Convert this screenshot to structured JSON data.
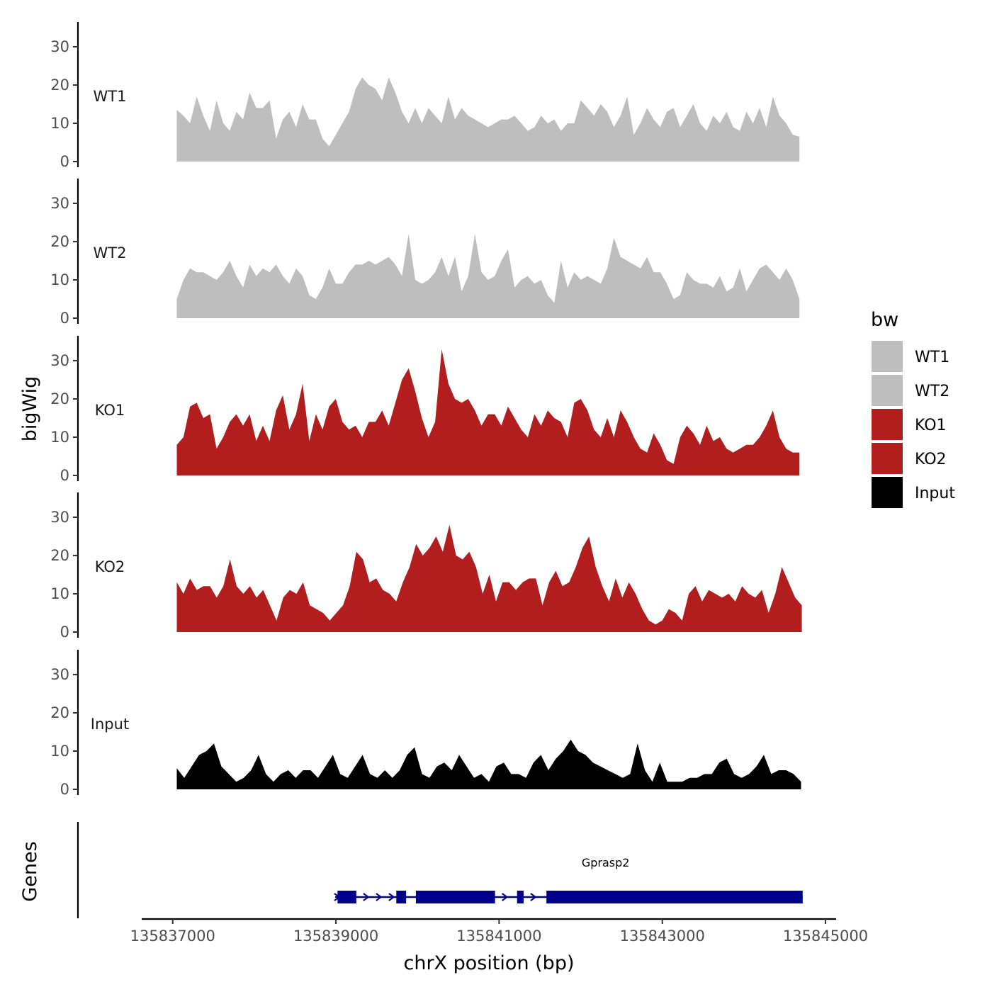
{
  "chart_data": {
    "type": "area",
    "x_axis": {
      "label": "chrX position (bp)",
      "lim": [
        135836620,
        135845130
      ],
      "ticks": [
        135837000,
        135839000,
        135841000,
        135843000,
        135845000
      ],
      "tick_labels": [
        "135837000",
        "135839000",
        "135841000",
        "135843000",
        "135845000"
      ]
    },
    "y_axis": {
      "label": "bigWig",
      "lim": [
        0,
        35
      ],
      "ticks": [
        0,
        10,
        20,
        30
      ],
      "tick_labels": [
        "0",
        "10",
        "20",
        "30"
      ]
    },
    "genes_axis_label": "Genes",
    "legend": {
      "title": "bw",
      "entries": [
        {
          "name": "WT1",
          "color": "#bebebe"
        },
        {
          "name": "WT2",
          "color": "#bebebe"
        },
        {
          "name": "KO1",
          "color": "#b21e1e"
        },
        {
          "name": "KO2",
          "color": "#b21e1e"
        },
        {
          "name": "Input",
          "color": "#000000"
        }
      ]
    },
    "series": [
      {
        "name": "WT1",
        "color": "#bebebe",
        "x_start": 135837050,
        "x_end": 135844680,
        "values": [
          13.5,
          12,
          10,
          17,
          12,
          8,
          16,
          10,
          8,
          13,
          11,
          18,
          14,
          14,
          16,
          6,
          11,
          13,
          9,
          15,
          11,
          11,
          6,
          4,
          7,
          10,
          13,
          19,
          22,
          20,
          19,
          16,
          22,
          18,
          13,
          10,
          14,
          10,
          14,
          12,
          10,
          17,
          11,
          14,
          12,
          11,
          10,
          9,
          10,
          11,
          11,
          12,
          10,
          8,
          9,
          12,
          10,
          11,
          8,
          10,
          10,
          16,
          14,
          12,
          15,
          13,
          9,
          12,
          17,
          7,
          10,
          14,
          11,
          9,
          13,
          14,
          9,
          12,
          15,
          10,
          8,
          12,
          10,
          13,
          9,
          8,
          13,
          10,
          14,
          9,
          17,
          12,
          10,
          7,
          6.5
        ]
      },
      {
        "name": "WT2",
        "color": "#bebebe",
        "x_start": 135837050,
        "x_end": 135844680,
        "values": [
          5,
          10,
          13,
          12,
          12,
          11,
          10,
          12,
          15,
          11,
          8,
          14,
          11,
          13,
          12,
          14,
          11,
          9,
          13,
          11,
          6,
          5,
          8,
          13,
          9,
          9,
          12,
          14,
          14,
          15,
          14,
          15,
          16,
          14,
          11,
          22,
          10,
          9,
          10,
          12,
          16,
          11,
          16,
          7,
          11,
          22,
          12,
          10,
          11,
          15,
          18,
          8,
          10,
          11,
          9,
          10,
          6,
          4,
          15,
          8,
          12,
          10,
          11,
          10,
          9,
          13,
          21,
          16,
          15,
          14,
          13,
          16,
          12,
          12,
          9,
          5,
          6,
          12,
          10,
          9,
          9,
          8,
          11,
          7,
          8,
          13,
          7,
          10,
          13,
          14,
          12,
          10,
          13,
          10,
          5
        ]
      },
      {
        "name": "KO1",
        "color": "#b21e1e",
        "x_start": 135837050,
        "x_end": 135844680,
        "values": [
          8,
          10,
          18,
          19,
          15,
          16,
          7,
          10,
          14,
          16,
          13,
          16,
          9,
          13,
          9,
          17,
          21,
          12,
          16,
          24,
          9,
          16,
          12,
          18,
          20,
          14,
          12,
          13,
          10,
          14,
          14,
          17,
          13,
          19,
          25,
          28,
          22,
          15,
          10,
          14,
          33,
          24,
          20,
          19,
          20,
          17,
          13,
          16,
          16,
          13,
          18,
          15,
          12,
          10,
          16,
          13,
          17,
          15,
          14,
          10,
          19,
          20,
          17,
          12,
          10,
          15,
          10,
          17,
          14,
          10,
          7,
          6,
          11,
          8,
          4,
          3,
          10,
          13,
          11,
          8,
          13,
          9,
          10,
          7,
          6,
          7,
          8,
          8,
          10,
          13,
          17,
          10,
          7,
          6,
          6
        ]
      },
      {
        "name": "KO2",
        "color": "#b21e1e",
        "x_start": 135837050,
        "x_end": 135844710,
        "values": [
          13,
          10,
          14,
          11,
          12,
          12,
          9,
          12,
          19,
          12,
          10,
          12,
          9,
          11,
          7,
          3,
          9,
          11,
          10,
          13,
          7,
          6,
          5,
          3,
          5,
          7,
          12,
          21,
          19,
          13,
          14,
          11,
          10,
          8,
          13,
          17,
          23,
          20,
          22,
          25,
          21,
          28,
          20,
          19,
          21,
          17,
          10,
          15,
          8,
          13,
          13,
          11,
          13,
          14,
          14,
          7,
          13,
          16,
          12,
          13,
          17,
          22,
          25,
          17,
          12,
          8,
          14,
          9,
          13,
          10,
          6,
          3,
          2,
          3,
          6,
          5,
          3,
          10,
          12,
          8,
          11,
          10,
          9,
          10,
          8,
          12,
          10,
          9,
          11,
          5,
          10,
          17,
          13,
          9,
          7
        ]
      },
      {
        "name": "Input",
        "color": "#000000",
        "x_start": 135837050,
        "x_end": 135844700,
        "values": [
          5.5,
          3,
          6,
          9,
          10,
          12,
          6,
          4,
          2,
          3,
          5,
          9,
          4,
          2,
          4,
          5,
          3,
          5,
          5,
          3,
          6,
          9,
          4,
          3,
          6,
          9,
          4,
          3,
          5,
          3,
          5,
          9,
          11,
          4,
          3,
          6,
          7,
          5,
          9,
          6,
          3,
          4,
          2,
          6,
          7,
          4,
          4,
          3,
          7,
          9,
          5,
          8,
          10,
          13,
          10,
          9,
          7,
          6,
          5,
          4,
          3,
          4,
          12,
          5,
          2,
          7,
          2,
          2,
          2,
          3,
          3,
          4,
          4,
          7,
          8,
          4,
          3,
          4,
          6,
          9,
          4,
          5,
          5,
          4,
          2
        ]
      }
    ],
    "genes": [
      {
        "name": "Gprasp2",
        "strand": "+",
        "start": 135838990,
        "end": 135844720,
        "exons": [
          [
            135839020,
            135839250
          ],
          [
            135839740,
            135839860
          ],
          [
            135839980,
            135840950
          ],
          [
            135841220,
            135841300
          ],
          [
            135841580,
            135844720
          ]
        ]
      }
    ]
  }
}
